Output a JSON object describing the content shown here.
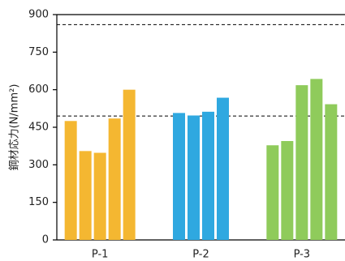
{
  "chart_data": {
    "type": "bar",
    "y_label": "鋼材応力(N/mm²)",
    "categories": [
      "P-1",
      "P-2",
      "P-3"
    ],
    "values": [
      [
        475,
        355,
        348,
        485,
        600
      ],
      [
        507,
        497,
        512,
        568
      ],
      [
        378,
        395,
        618,
        643,
        542
      ]
    ],
    "colors": [
      "#f4b731",
      "#2fa8e0",
      "#8fcb5b"
    ],
    "ylim": [
      0,
      900
    ],
    "yticks": [
      0,
      150,
      300,
      450,
      600,
      750,
      900
    ],
    "reference_lines": [
      860,
      495
    ]
  }
}
